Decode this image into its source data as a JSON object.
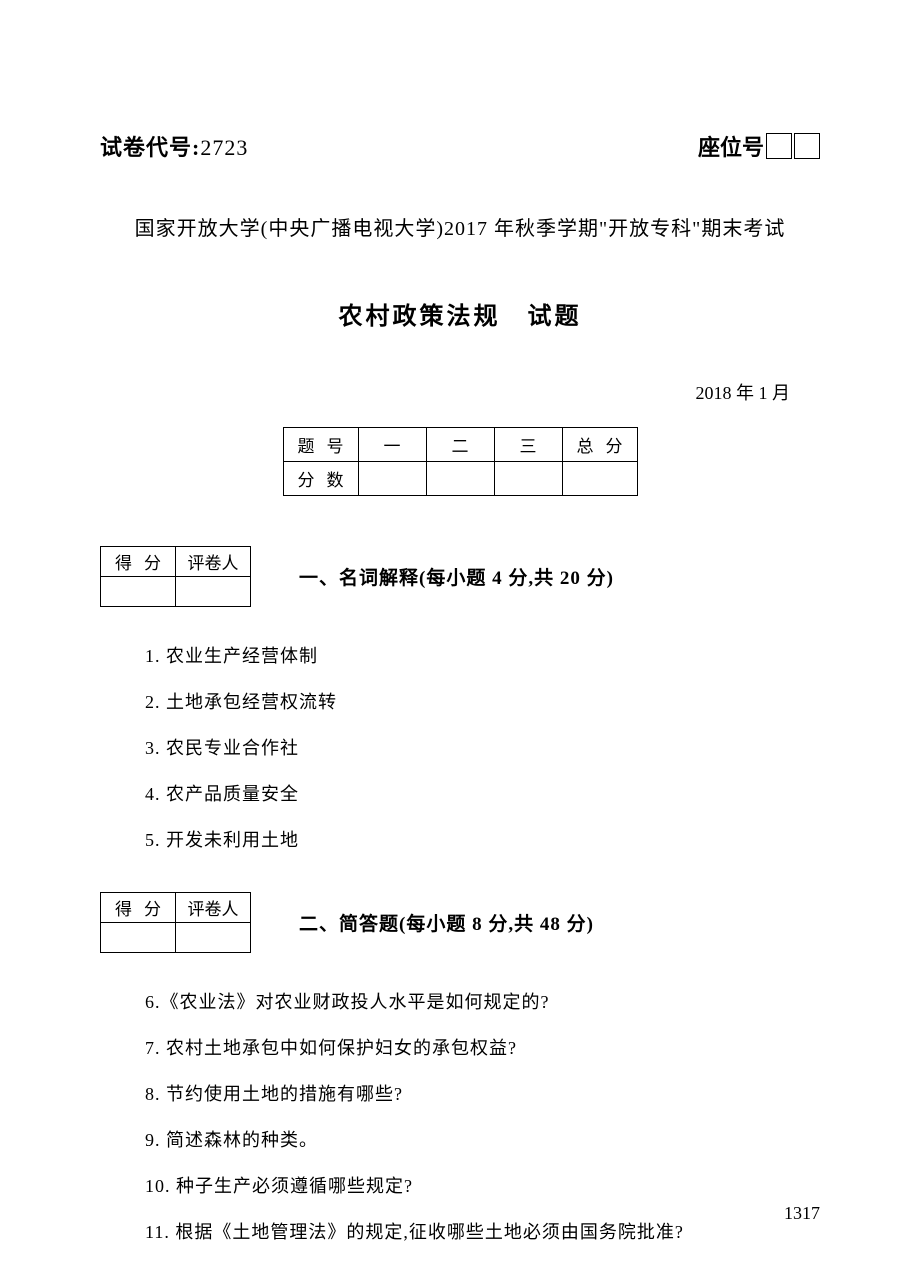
{
  "header": {
    "exam_code_label": "试卷代号:",
    "exam_code_number": "2723",
    "seat_label": "座位号"
  },
  "university_line": "国家开放大学(中央广播电视大学)2017 年秋季学期\"开放专科\"期末考试",
  "title": "农村政策法规　试题",
  "date": "2018 年 1 月",
  "score_table": {
    "row1_label": "题号",
    "cols": [
      "一",
      "二",
      "三"
    ],
    "total_label": "总分",
    "row2_label": "分数"
  },
  "grader_table": {
    "score_label": "得分",
    "grader_label": "评卷人"
  },
  "section1": {
    "title": "一、名词解释(每小题 4 分,共 20 分)",
    "questions": [
      "1. 农业生产经营体制",
      "2. 土地承包经营权流转",
      "3. 农民专业合作社",
      "4. 农产品质量安全",
      "5. 开发未利用土地"
    ]
  },
  "section2": {
    "title": "二、简答题(每小题 8 分,共 48 分)",
    "questions": [
      "6.《农业法》对农业财政投人水平是如何规定的?",
      "7. 农村土地承包中如何保护妇女的承包权益?",
      "8. 节约使用土地的措施有哪些?",
      "9. 简述森林的种类。",
      "10. 种子生产必须遵循哪些规定?",
      "11. 根据《土地管理法》的规定,征收哪些土地必须由国务院批准?"
    ]
  },
  "page_number": "1317"
}
